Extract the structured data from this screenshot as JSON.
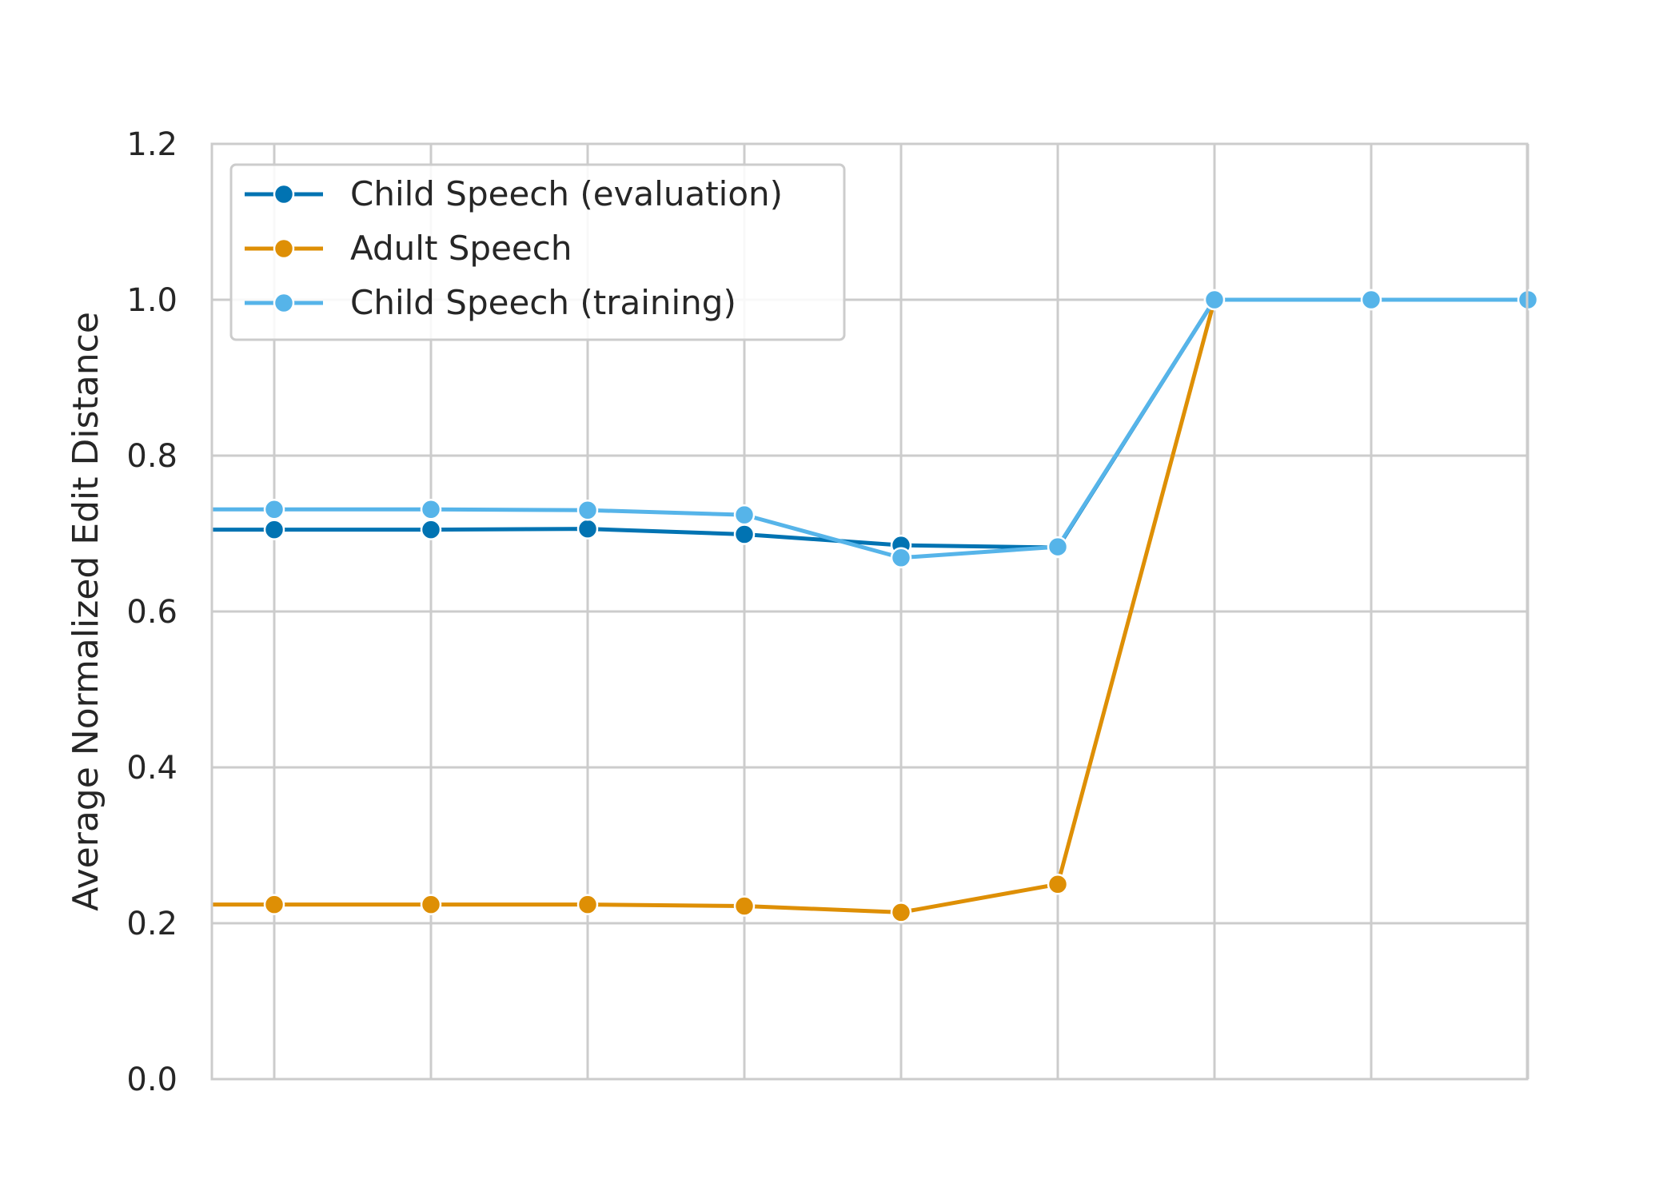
{
  "chart_data": {
    "type": "line",
    "title": "",
    "xlabel": "",
    "ylabel": "Average Normalized Edit Distance",
    "ylim": [
      0.0,
      1.2
    ],
    "y_ticks": [
      "0.0",
      "0.2",
      "0.4",
      "0.6",
      "0.8",
      "1.0",
      "1.2"
    ],
    "x": [
      1,
      2,
      3,
      4,
      5,
      6,
      7,
      8,
      9
    ],
    "x_tick_labels": [],
    "grid": true,
    "legend_position": "top-left",
    "series": [
      {
        "name": "Child Speech (evaluation)",
        "color": "#0173b2",
        "values": [
          0.705,
          0.705,
          0.706,
          0.699,
          0.685,
          0.682,
          1.0,
          1.0,
          1.0
        ]
      },
      {
        "name": "Adult Speech",
        "color": "#de8f05",
        "values": [
          0.224,
          0.224,
          0.224,
          0.222,
          0.214,
          0.25,
          1.0,
          1.0,
          1.0
        ]
      },
      {
        "name": "Child Speech (training)",
        "color": "#56b4e9",
        "values": [
          0.731,
          0.731,
          0.73,
          0.724,
          0.669,
          0.683,
          1.0,
          1.0,
          1.0
        ]
      }
    ]
  }
}
